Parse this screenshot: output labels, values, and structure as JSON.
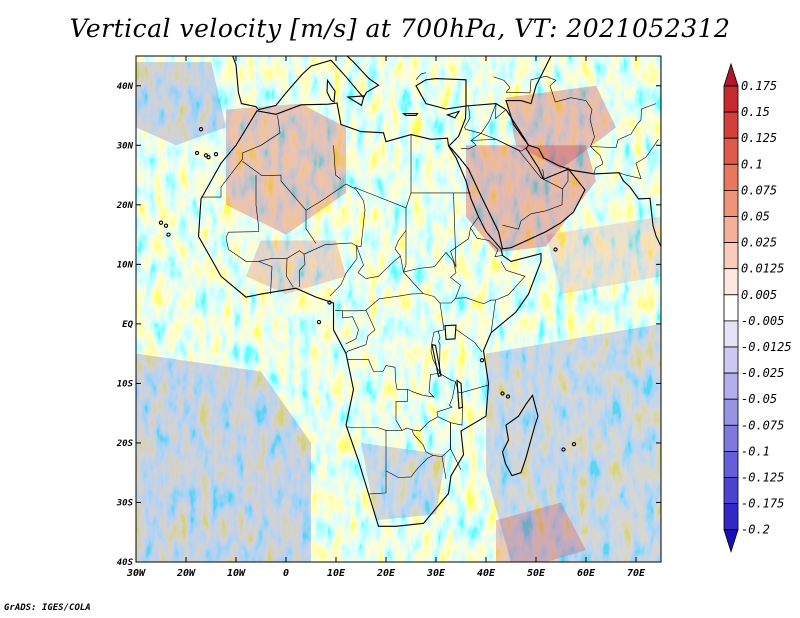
{
  "title": "Vertical velocity [m/s] at 700hPa, VT: 2021052312",
  "credit": "GrADS: IGES/COLA",
  "map": {
    "lon_range": [
      -30,
      75
    ],
    "lat_range": [
      -40,
      45
    ],
    "lon_ticks": [
      {
        "value": -30,
        "label": "30W"
      },
      {
        "value": -20,
        "label": "20W"
      },
      {
        "value": -10,
        "label": "10W"
      },
      {
        "value": 0,
        "label": "0"
      },
      {
        "value": 10,
        "label": "10E"
      },
      {
        "value": 20,
        "label": "20E"
      },
      {
        "value": 30,
        "label": "30E"
      },
      {
        "value": 40,
        "label": "40E"
      },
      {
        "value": 50,
        "label": "50E"
      },
      {
        "value": 60,
        "label": "60E"
      },
      {
        "value": 70,
        "label": "70E"
      }
    ],
    "lat_ticks": [
      {
        "value": 40,
        "label": "40N"
      },
      {
        "value": 30,
        "label": "30N"
      },
      {
        "value": 20,
        "label": "20N"
      },
      {
        "value": 10,
        "label": "10N"
      },
      {
        "value": 0,
        "label": "EQ"
      },
      {
        "value": -10,
        "label": "10S"
      },
      {
        "value": -20,
        "label": "20S"
      },
      {
        "value": -30,
        "label": "30S"
      },
      {
        "value": -40,
        "label": "40S"
      }
    ]
  },
  "colorbar": {
    "labels": [
      "0.175",
      "0.15",
      "0.125",
      "0.1",
      "0.075",
      "0.05",
      "0.025",
      "0.0125",
      "0.005",
      "-0.005",
      "-0.0125",
      "-0.025",
      "-0.05",
      "-0.075",
      "-0.1",
      "-0.125",
      "-0.175",
      "-0.2"
    ],
    "colors": [
      "#b2182b",
      "#c42a2e",
      "#d6403a",
      "#e05a4c",
      "#e9775f",
      "#f09479",
      "#f5b09a",
      "#f9cbbb",
      "#fde7df",
      "#ffffff",
      "#e6e3f7",
      "#cdc9f2",
      "#b3aeec",
      "#9993e6",
      "#7f78df",
      "#665dd8",
      "#4c43d1",
      "#3228c8",
      "#1a0fb5"
    ]
  },
  "colors": {
    "positive": "#c8283a",
    "negative": "#3a32c8",
    "coast": "#000000"
  }
}
